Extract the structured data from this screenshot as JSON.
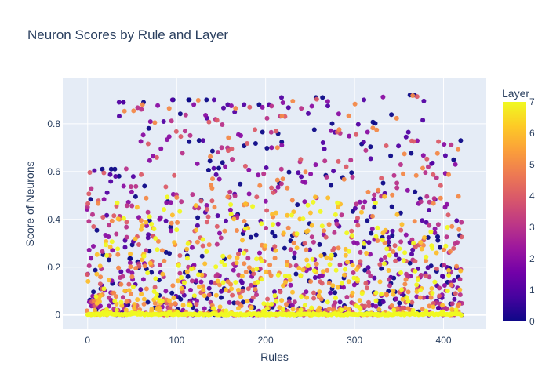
{
  "chart_data": {
    "type": "scatter",
    "title": "Neuron Scores by Rule and Layer",
    "xlabel": "Rules",
    "ylabel": "Score of Neurons",
    "xlim": [
      -28,
      448
    ],
    "ylim": [
      -0.06,
      0.99
    ],
    "x_ticks": [
      0,
      100,
      200,
      300,
      400
    ],
    "y_ticks": [
      0,
      0.2,
      0.4,
      0.6,
      0.8
    ],
    "x_tick_labels": [
      "0",
      "100",
      "200",
      "300",
      "400"
    ],
    "y_tick_labels": [
      "0",
      "0.2",
      "0.4",
      "0.6",
      "0.8"
    ],
    "grid": true,
    "plot_background": "#e5ecf6",
    "colorbar": {
      "title": "Layer",
      "min": 0,
      "max": 7,
      "ticks": [
        0,
        1,
        2,
        3,
        4,
        5,
        6,
        7
      ],
      "tick_labels": [
        "0",
        "1",
        "2",
        "3",
        "4",
        "5",
        "6",
        "7"
      ],
      "colorscale": [
        "#0d0887",
        "#46039f",
        "#7201a8",
        "#9c179e",
        "#bd3786",
        "#d8576b",
        "#ed7953",
        "#fb9f3a",
        "#fdca26",
        "#f0f921"
      ]
    },
    "series": [
      {
        "rule_range": [
          0,
          420
        ],
        "layers": [
          0,
          7
        ],
        "marker": "circle",
        "group_max_scores": [
          {
            "rules": [
              0,
              32
            ],
            "max": 0.61
          },
          {
            "rules": [
              33,
              87
            ],
            "max": 0.89
          },
          {
            "rules": [
              88,
              150
            ],
            "max": 0.9
          },
          {
            "rules": [
              151,
              205
            ],
            "max": 0.88
          },
          {
            "rules": [
              206,
              265
            ],
            "max": 0.91
          },
          {
            "rules": [
              266,
              330
            ],
            "max": 0.9
          },
          {
            "rules": [
              331,
              385
            ],
            "max": 0.92
          },
          {
            "rules": [
              386,
              420
            ],
            "max": 0.73
          }
        ],
        "baseline_score": 0.0,
        "baseline_layer": 7
      }
    ]
  }
}
